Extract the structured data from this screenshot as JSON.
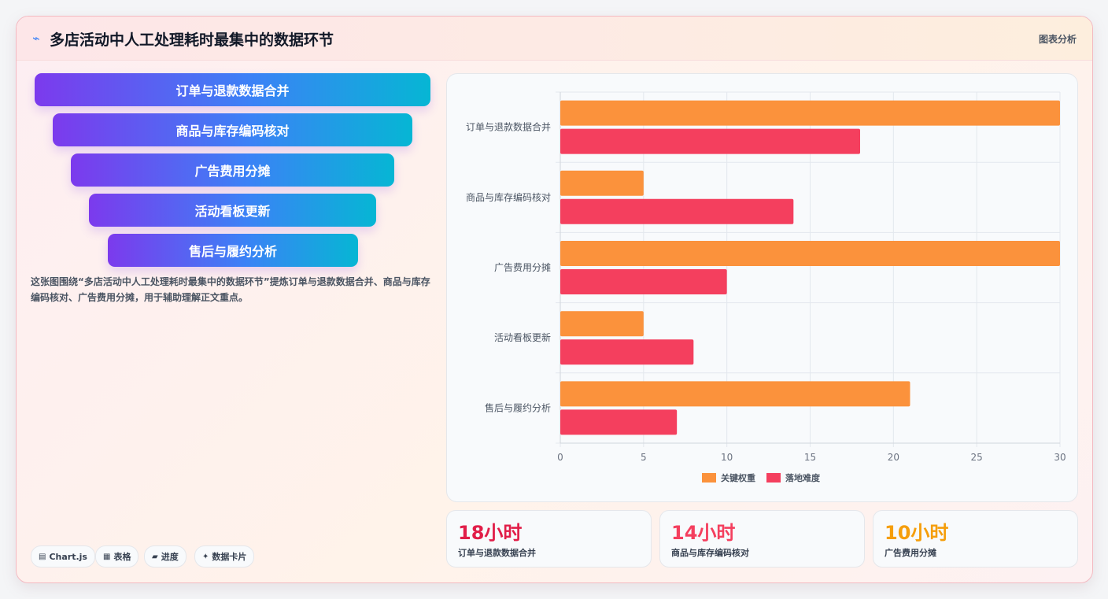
{
  "header": {
    "icon": "chart-line-icon",
    "title": "多店活动中人工处理耗时最集中的数据环节",
    "tag": "图表分析"
  },
  "funnel": {
    "steps": [
      "订单与退款数据合并",
      "商品与库存编码核对",
      "广告费用分摊",
      "活动看板更新",
      "售后与履约分析"
    ]
  },
  "description": "这张图围绕“多店活动中人工处理耗时最集中的数据环节”提炼订单与退款数据合并、商品与库存编码核对、广告费用分摊，用于辅助理解正文重点。",
  "pills": [
    {
      "icon": "chart-icon",
      "label": "Chart.js"
    },
    {
      "icon": "table-icon",
      "label": "表格"
    },
    {
      "icon": "progress-icon",
      "label": "进度"
    },
    {
      "icon": "sparkle-icon",
      "label": "数据卡片"
    }
  ],
  "chart_data": {
    "type": "bar",
    "orientation": "horizontal",
    "categories": [
      "订单与退款数据合并",
      "商品与库存编码核对",
      "广告费用分摊",
      "活动看板更新",
      "售后与履约分析"
    ],
    "series": [
      {
        "name": "关键权重",
        "values": [
          30,
          5,
          30,
          5,
          21
        ],
        "color": "#fb923c"
      },
      {
        "name": "落地难度",
        "values": [
          18,
          14,
          10,
          8,
          7
        ],
        "color": "#f43f5e"
      }
    ],
    "xlim": [
      0,
      30
    ],
    "xticks": [
      0,
      5,
      10,
      15,
      20,
      25,
      30
    ],
    "grid": true,
    "legend": "bottom"
  },
  "stats": [
    {
      "value": "18小时",
      "label": "订单与退款数据合并",
      "color": "#e11d48"
    },
    {
      "value": "14小时",
      "label": "商品与库存编码核对",
      "color": "#f43f5e"
    },
    {
      "value": "10小时",
      "label": "广告费用分摊",
      "color": "#f59e0b"
    }
  ]
}
